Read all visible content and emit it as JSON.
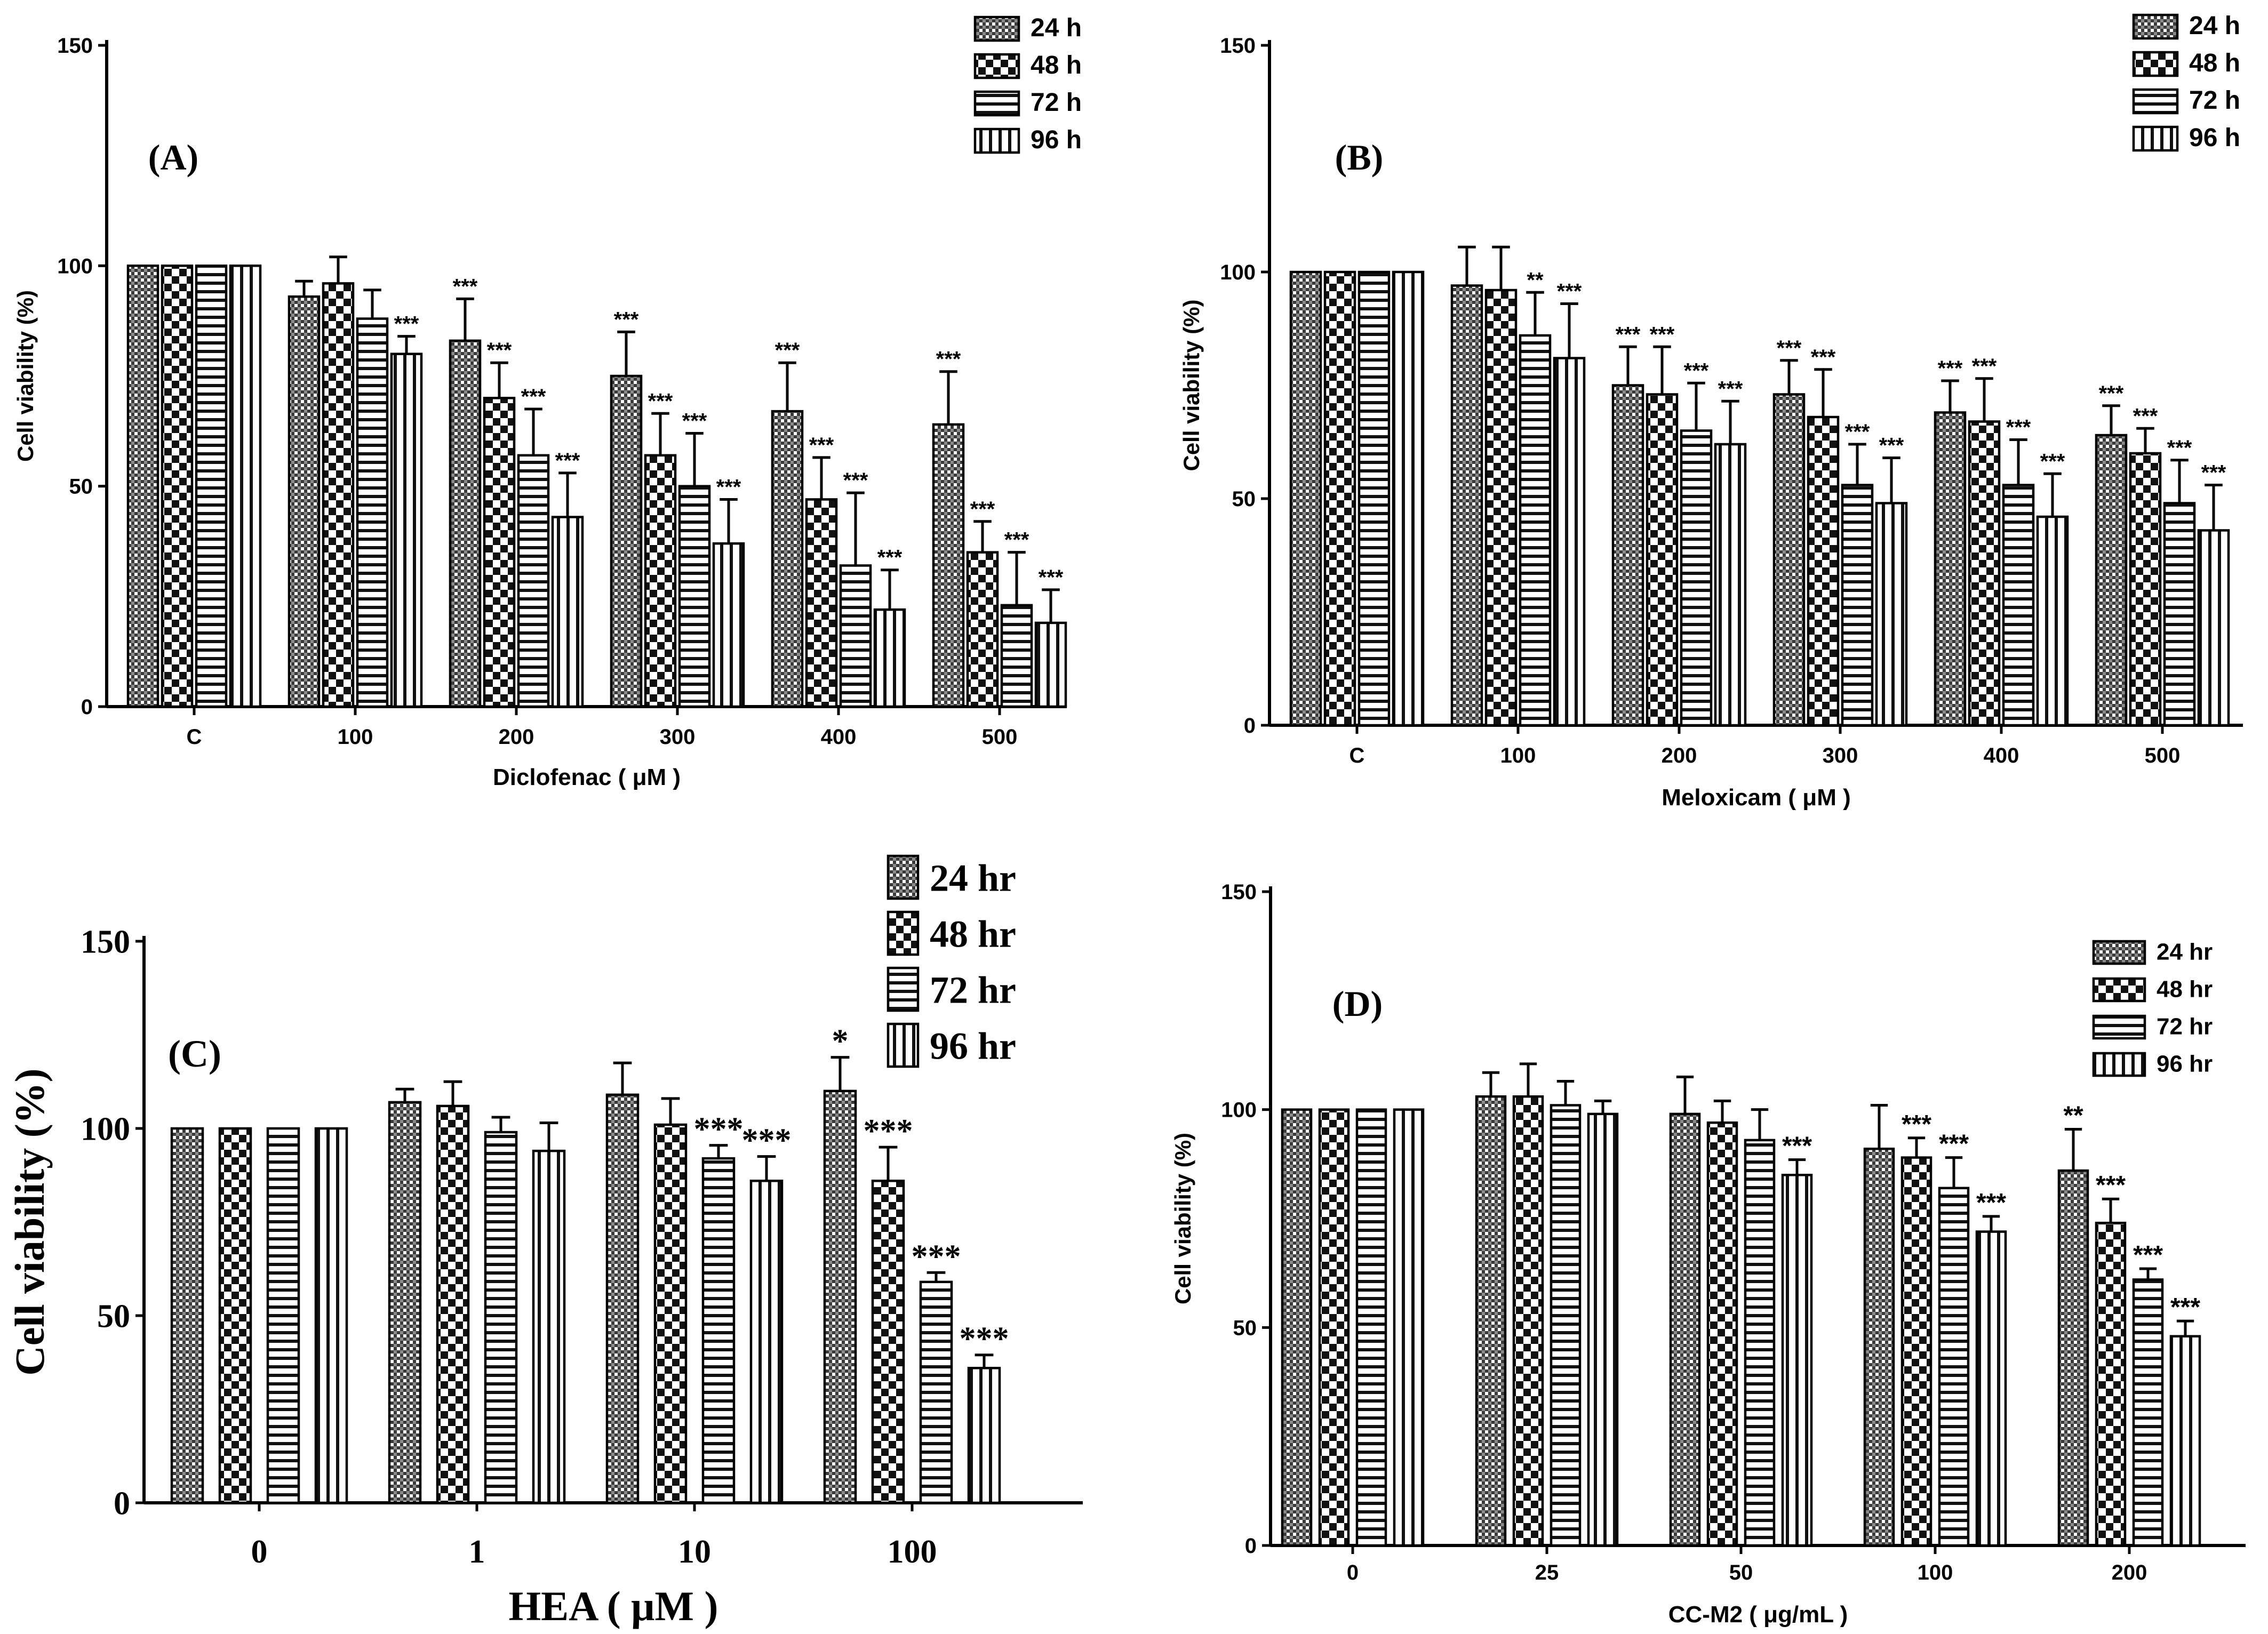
{
  "chart_data": [
    {
      "type": "bar",
      "panel_label": "(A)",
      "xlabel": "Diclofenac ( μM )",
      "ylabel": "Cell viability (%)",
      "ylim": [
        0,
        150
      ],
      "yticks": [
        "0",
        "50",
        "100",
        "150"
      ],
      "categories": [
        "C",
        "100",
        "200",
        "300",
        "400",
        "500"
      ],
      "legend_position": "top-right",
      "series": [
        {
          "name": "24 h",
          "values": [
            100,
            93,
            83,
            75,
            67,
            64
          ],
          "errors": [
            0,
            3.5,
            9.5,
            10,
            11,
            12
          ],
          "significance": [
            "",
            "",
            "***",
            "***",
            "***",
            "***"
          ]
        },
        {
          "name": "48 h",
          "values": [
            100,
            96,
            70,
            57,
            47,
            35
          ],
          "errors": [
            0,
            6,
            8,
            9.5,
            9.5,
            7
          ],
          "significance": [
            "",
            "",
            "***",
            "***",
            "***",
            "***"
          ]
        },
        {
          "name": "72 h",
          "values": [
            100,
            88,
            57,
            50,
            32,
            23
          ],
          "errors": [
            0,
            6.5,
            10.5,
            12,
            16.5,
            12
          ],
          "significance": [
            "",
            "",
            "***",
            "***",
            "***",
            "***"
          ]
        },
        {
          "name": "96 h",
          "values": [
            100,
            80,
            43,
            37,
            22,
            19
          ],
          "errors": [
            0,
            4,
            10,
            10,
            9,
            7.5
          ],
          "significance": [
            "",
            "***",
            "***",
            "***",
            "***",
            "***"
          ]
        }
      ]
    },
    {
      "type": "bar",
      "panel_label": "(B)",
      "xlabel": "Meloxicam ( μM )",
      "ylabel": "Cell viability (%)",
      "ylim": [
        0,
        150
      ],
      "yticks": [
        "0",
        "50",
        "100",
        "150"
      ],
      "categories": [
        "C",
        "100",
        "200",
        "300",
        "400",
        "500"
      ],
      "legend_position": "top-right",
      "series": [
        {
          "name": "24 h",
          "values": [
            100,
            97,
            75,
            73,
            69,
            64
          ],
          "errors": [
            0,
            8.5,
            8.5,
            7.5,
            7,
            6.5
          ],
          "significance": [
            "",
            "",
            "***",
            "***",
            "***",
            "***"
          ]
        },
        {
          "name": "48 h",
          "values": [
            100,
            96,
            73,
            68,
            67,
            60
          ],
          "errors": [
            0,
            9.5,
            10.5,
            10.5,
            9.5,
            5.5
          ],
          "significance": [
            "",
            "",
            "***",
            "***",
            "***",
            "***"
          ]
        },
        {
          "name": "72 h",
          "values": [
            100,
            86,
            65,
            53,
            53,
            49
          ],
          "errors": [
            0,
            9.5,
            10.5,
            9,
            10,
            9.5
          ],
          "significance": [
            "",
            "**",
            "***",
            "***",
            "***",
            "***"
          ]
        },
        {
          "name": "96 h",
          "values": [
            100,
            81,
            62,
            49,
            46,
            43
          ],
          "errors": [
            0,
            12,
            9.5,
            10,
            9.5,
            10
          ],
          "significance": [
            "",
            "***",
            "***",
            "***",
            "***",
            "***"
          ]
        }
      ]
    },
    {
      "type": "bar",
      "panel_label": "(C)",
      "xlabel": "HEA ( μM )",
      "ylabel": "Cell viability (%)",
      "ylim": [
        0,
        150
      ],
      "yticks": [
        "0",
        "50",
        "100",
        "150"
      ],
      "categories": [
        "0",
        "1",
        "10",
        "100"
      ],
      "legend_position": "top-right",
      "series": [
        {
          "name": "24 hr",
          "values": [
            100,
            107,
            109,
            110
          ],
          "errors": [
            0,
            3.5,
            8.5,
            9
          ],
          "significance": [
            "",
            "",
            "",
            "*"
          ]
        },
        {
          "name": "48 hr",
          "values": [
            100,
            106,
            101,
            86
          ],
          "errors": [
            0,
            6.5,
            7,
            9
          ],
          "significance": [
            "",
            "",
            "",
            "***"
          ]
        },
        {
          "name": "72 hr",
          "values": [
            100,
            99,
            92,
            59
          ],
          "errors": [
            0,
            4,
            3.5,
            2.5
          ],
          "significance": [
            "",
            "",
            "***",
            "***"
          ]
        },
        {
          "name": "96 hr",
          "values": [
            100,
            94,
            86,
            36
          ],
          "errors": [
            0,
            7.5,
            6.5,
            3.5
          ],
          "significance": [
            "",
            "",
            "***",
            "***"
          ]
        }
      ]
    },
    {
      "type": "bar",
      "panel_label": "(D)",
      "xlabel": "CC-M2 ( μg/mL )",
      "ylabel": "Cell viability (%)",
      "ylim": [
        0,
        150
      ],
      "yticks": [
        "0",
        "50",
        "100",
        "150"
      ],
      "categories": [
        "0",
        "25",
        "50",
        "100",
        "200"
      ],
      "legend_position": "top-right",
      "series": [
        {
          "name": "24 hr",
          "values": [
            100,
            103,
            99,
            91,
            86
          ],
          "errors": [
            0,
            5.5,
            8.5,
            10,
            9.5
          ],
          "significance": [
            "",
            "",
            "",
            "",
            "**"
          ]
        },
        {
          "name": "48 hr",
          "values": [
            100,
            103,
            97,
            89,
            74
          ],
          "errors": [
            0,
            7.5,
            5,
            4.5,
            5.5
          ],
          "significance": [
            "",
            "",
            "",
            "***",
            "***"
          ]
        },
        {
          "name": "72 hr",
          "values": [
            100,
            101,
            93,
            82,
            61
          ],
          "errors": [
            0,
            5.5,
            7,
            7,
            2.5
          ],
          "significance": [
            "",
            "",
            "",
            "***",
            "***"
          ]
        },
        {
          "name": "96 hr",
          "values": [
            100,
            99,
            85,
            72,
            48
          ],
          "errors": [
            0,
            3,
            3.5,
            3.5,
            3.5
          ],
          "significance": [
            "",
            "",
            "***",
            "***",
            "***"
          ]
        }
      ]
    }
  ]
}
